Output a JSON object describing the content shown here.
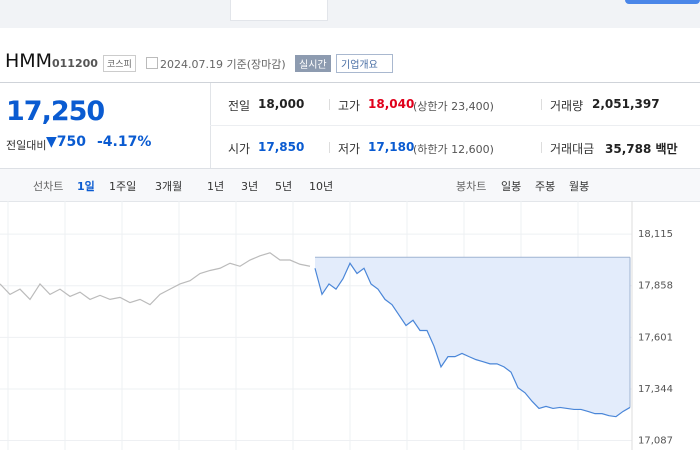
{
  "header": {
    "name": "HMM",
    "code": "011200",
    "market": "코스피",
    "date": "2024.07.19 기준(장마감)",
    "realtime": "실시간",
    "overview": "기업개요"
  },
  "price": {
    "current": "17,250",
    "change_label": "전일대비",
    "change": "▼750",
    "change_pct": "-4.17%"
  },
  "table": {
    "rows": [
      [
        {
          "label": "전일",
          "value": "18,000"
        },
        {
          "label": "고가",
          "value": "18,040",
          "note": "(상한가 23,400)"
        },
        {
          "label": "거래량",
          "value": "2,051,397"
        }
      ],
      [
        {
          "label": "시가",
          "value": "17,850"
        },
        {
          "label": "저가",
          "value": "17,180",
          "note": "(하한가 12,600)"
        },
        {
          "label": "거래대금",
          "value": "35,788 백만"
        }
      ]
    ]
  },
  "tabs": {
    "line_label": "선차트",
    "line": [
      "1일",
      "1주일",
      "3개월",
      "1년",
      "3년",
      "5년",
      "10년"
    ],
    "candle_label": "봉차트",
    "candle": [
      "일봉",
      "주봉",
      "월봉"
    ]
  },
  "chart_data": {
    "type": "line",
    "ylim": [
      17040,
      18280
    ],
    "yticks": [
      {
        "value": 18115,
        "label": "18,115"
      },
      {
        "value": 17858,
        "label": "17,858"
      },
      {
        "value": 17601,
        "label": "17,601"
      },
      {
        "value": 17344,
        "label": "17,344"
      },
      {
        "value": 17087,
        "label": "17,087"
      }
    ],
    "prev_close": 18000,
    "series": [
      {
        "color": "#bbbbbb",
        "values": [
          17867,
          17815,
          17841,
          17790,
          17867,
          17815,
          17841,
          17805,
          17826,
          17790,
          17810,
          17790,
          17800,
          17774,
          17790,
          17764,
          17815,
          17841,
          17867,
          17883,
          17919,
          17934,
          17945,
          17970,
          17955,
          17986,
          18007,
          18022,
          17986,
          17986,
          17965,
          17955
        ]
      },
      {
        "color": "#4a86d8",
        "fill": "#e3ecfb",
        "values": [
          17945,
          17815,
          17867,
          17841,
          17893,
          17970,
          17919,
          17945,
          17867,
          17841,
          17790,
          17764,
          17712,
          17660,
          17686,
          17635,
          17635,
          17557,
          17454,
          17505,
          17505,
          17521,
          17505,
          17490,
          17480,
          17469,
          17469,
          17454,
          17428,
          17350,
          17325,
          17283,
          17247,
          17257,
          17247,
          17252,
          17247,
          17242,
          17242,
          17232,
          17221,
          17221,
          17211,
          17206,
          17232,
          17252
        ]
      }
    ]
  }
}
